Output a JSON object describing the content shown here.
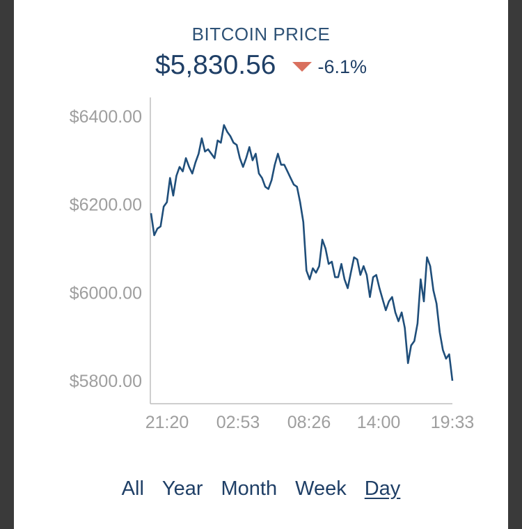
{
  "header": {
    "title": "BITCOIN PRICE",
    "price": "$5,830.56",
    "change": "-6.1%",
    "change_icon": "triangle-down-icon",
    "change_color": "#d9705e"
  },
  "ranges": [
    {
      "label": "All",
      "active": false
    },
    {
      "label": "Year",
      "active": false
    },
    {
      "label": "Month",
      "active": false
    },
    {
      "label": "Week",
      "active": false
    },
    {
      "label": "Day",
      "active": true
    }
  ],
  "chart_data": {
    "type": "line",
    "line_color": "#1f4e7a",
    "ylim": [
      5750,
      6420
    ],
    "y_ticks": [
      {
        "value": 6400,
        "label": "$6400.00"
      },
      {
        "value": 6200,
        "label": "$6200.00"
      },
      {
        "value": 6000,
        "label": "$6000.00"
      },
      {
        "value": 5800,
        "label": "$5800.00"
      }
    ],
    "x_ticks": [
      "21:20",
      "02:53",
      "08:26",
      "14:00",
      "19:33"
    ],
    "grid": false,
    "series": [
      {
        "values": [
          6180,
          6130,
          6145,
          6150,
          6195,
          6205,
          6260,
          6220,
          6265,
          6285,
          6275,
          6305,
          6285,
          6270,
          6295,
          6315,
          6350,
          6320,
          6325,
          6315,
          6305,
          6345,
          6340,
          6380,
          6365,
          6355,
          6340,
          6335,
          6305,
          6285,
          6305,
          6330,
          6300,
          6315,
          6270,
          6260,
          6240,
          6235,
          6255,
          6290,
          6315,
          6290,
          6290,
          6275,
          6260,
          6245,
          6240,
          6205,
          6160,
          6050,
          6030,
          6055,
          6045,
          6060,
          6120,
          6100,
          6065,
          6070,
          6035,
          6035,
          6065,
          6030,
          6010,
          6045,
          6080,
          6075,
          6040,
          6060,
          6040,
          5990,
          6035,
          6040,
          6010,
          5985,
          5960,
          5980,
          5990,
          5955,
          5935,
          5955,
          5920,
          5840,
          5880,
          5890,
          5930,
          6030,
          5980,
          6080,
          6060,
          6005,
          5975,
          5910,
          5870,
          5850,
          5860,
          5800
        ]
      }
    ]
  }
}
